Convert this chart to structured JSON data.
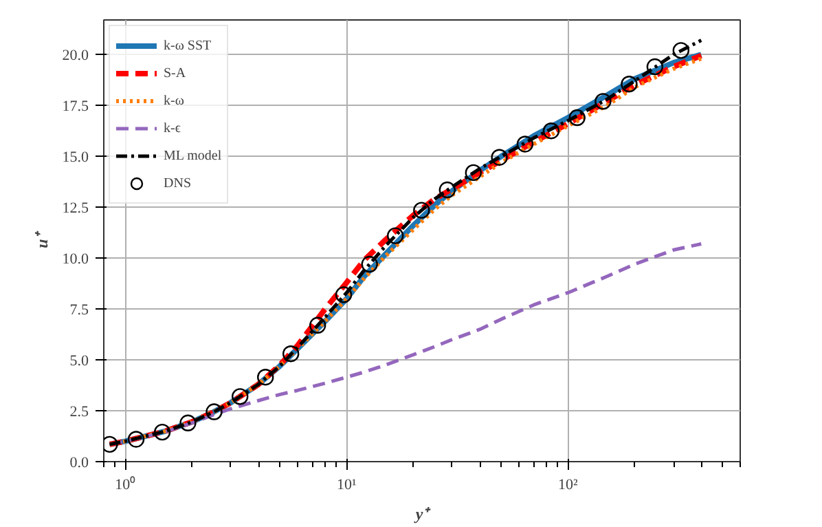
{
  "chart_data": {
    "type": "line",
    "xlabel": "y⁺",
    "ylabel": "u⁺",
    "log": "x",
    "grid": true,
    "legend": "top left",
    "xlim": [
      0.8,
      600
    ],
    "ylim": [
      0,
      21.7
    ],
    "xticks": [
      {
        "value": 1,
        "label": "10⁰"
      },
      {
        "value": 10,
        "label": "10¹"
      },
      {
        "value": 100,
        "label": "10²"
      }
    ],
    "yticks": [
      {
        "value": 0,
        "label": "0.0"
      },
      {
        "value": 2.5,
        "label": "2.5"
      },
      {
        "value": 5,
        "label": "5.0"
      },
      {
        "value": 7.5,
        "label": "7.5"
      },
      {
        "value": 10,
        "label": "10.0"
      },
      {
        "value": 12.5,
        "label": "12.5"
      },
      {
        "value": 15,
        "label": "15.0"
      },
      {
        "value": 17.5,
        "label": "17.5"
      },
      {
        "value": 20,
        "label": "20.0"
      }
    ],
    "x": [
      0.85,
      1,
      1.5,
      2,
      2.5,
      3,
      4,
      5,
      6,
      8,
      10,
      12,
      15,
      20,
      25,
      30,
      40,
      50,
      70,
      100,
      150,
      200,
      300,
      400
    ],
    "series": [
      {
        "name": "k-ω SST",
        "color": "#1f77b4",
        "line_style": "solid",
        "values": [
          0.85,
          1.0,
          1.48,
          1.95,
          2.43,
          2.9,
          3.8,
          4.7,
          5.55,
          6.9,
          8.0,
          9.1,
          10.2,
          11.6,
          12.6,
          13.3,
          14.3,
          15.0,
          16.0,
          16.9,
          18.0,
          18.8,
          19.6,
          20.0
        ]
      },
      {
        "name": "S-A",
        "color": "#ff0000",
        "line_style": "dashed",
        "values": [
          0.85,
          1.0,
          1.48,
          1.95,
          2.43,
          2.9,
          3.8,
          4.75,
          5.7,
          7.5,
          8.8,
          9.9,
          10.9,
          12.1,
          12.9,
          13.4,
          14.2,
          14.8,
          15.7,
          16.6,
          17.7,
          18.5,
          19.4,
          19.95
        ]
      },
      {
        "name": "k-ω",
        "color": "#ff7f0e",
        "line_style": "dotted",
        "values": [
          0.85,
          1.0,
          1.48,
          1.95,
          2.43,
          2.9,
          3.8,
          4.7,
          5.55,
          6.9,
          8.0,
          9.0,
          10.1,
          11.4,
          12.4,
          13.1,
          14.0,
          14.7,
          15.6,
          16.5,
          17.5,
          18.4,
          19.3,
          19.8
        ]
      },
      {
        "name": "k-ϵ",
        "color": "#9467bd",
        "line_style": "dashed",
        "values": [
          0.85,
          1.0,
          1.45,
          1.9,
          2.3,
          2.6,
          3.0,
          3.3,
          3.5,
          3.85,
          4.15,
          4.4,
          4.75,
          5.25,
          5.65,
          6.0,
          6.5,
          7.0,
          7.7,
          8.3,
          9.1,
          9.7,
          10.4,
          10.7
        ]
      },
      {
        "name": "ML model",
        "color": "#000000",
        "line_style": "dashdot",
        "values": [
          0.85,
          1.0,
          1.48,
          1.95,
          2.43,
          2.9,
          3.8,
          4.7,
          5.6,
          7.1,
          8.3,
          9.4,
          10.6,
          12.0,
          12.9,
          13.5,
          14.4,
          15.0,
          15.9,
          16.75,
          17.8,
          18.7,
          20.0,
          20.7
        ]
      },
      {
        "name": "DNS",
        "type": "scatter",
        "marker": "circle",
        "color": "#000000",
        "x": [
          0.85,
          1.12,
          1.47,
          1.92,
          2.52,
          3.3,
          4.3,
          5.6,
          7.4,
          9.7,
          12.7,
          16.6,
          21.8,
          28.5,
          37.4,
          49,
          64,
          84,
          110,
          144,
          189,
          247,
          324
        ],
        "values": [
          0.85,
          1.1,
          1.45,
          1.9,
          2.45,
          3.2,
          4.15,
          5.3,
          6.7,
          8.2,
          9.7,
          11.1,
          12.35,
          13.35,
          14.2,
          14.95,
          15.6,
          16.25,
          16.9,
          17.7,
          18.55,
          19.4,
          20.2
        ]
      }
    ]
  }
}
